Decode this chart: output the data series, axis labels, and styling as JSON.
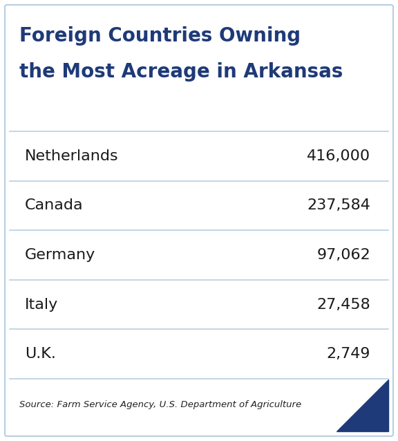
{
  "title_line1": "Foreign Countries Owning",
  "title_line2": "the Most Acreage in Arkansas",
  "title_color": "#1e3a78",
  "title_fontsize": 20,
  "rows": [
    {
      "country": "Netherlands",
      "value": "416,000"
    },
    {
      "country": "Canada",
      "value": "237,584"
    },
    {
      "country": "Germany",
      "value": "97,062"
    },
    {
      "country": "Italy",
      "value": "27,458"
    },
    {
      "country": "U.K.",
      "value": "2,749"
    }
  ],
  "row_text_color": "#1a1a1a",
  "row_fontsize": 16,
  "source_text": "Source: Farm Service Agency, U.S. Department of Agriculture",
  "source_fontsize": 9.5,
  "source_color": "#222222",
  "bg_color": "#ffffff",
  "divider_color": "#b8cfe0",
  "triangle_color": "#1e3a78",
  "outer_border_color": "#b8cfe0"
}
